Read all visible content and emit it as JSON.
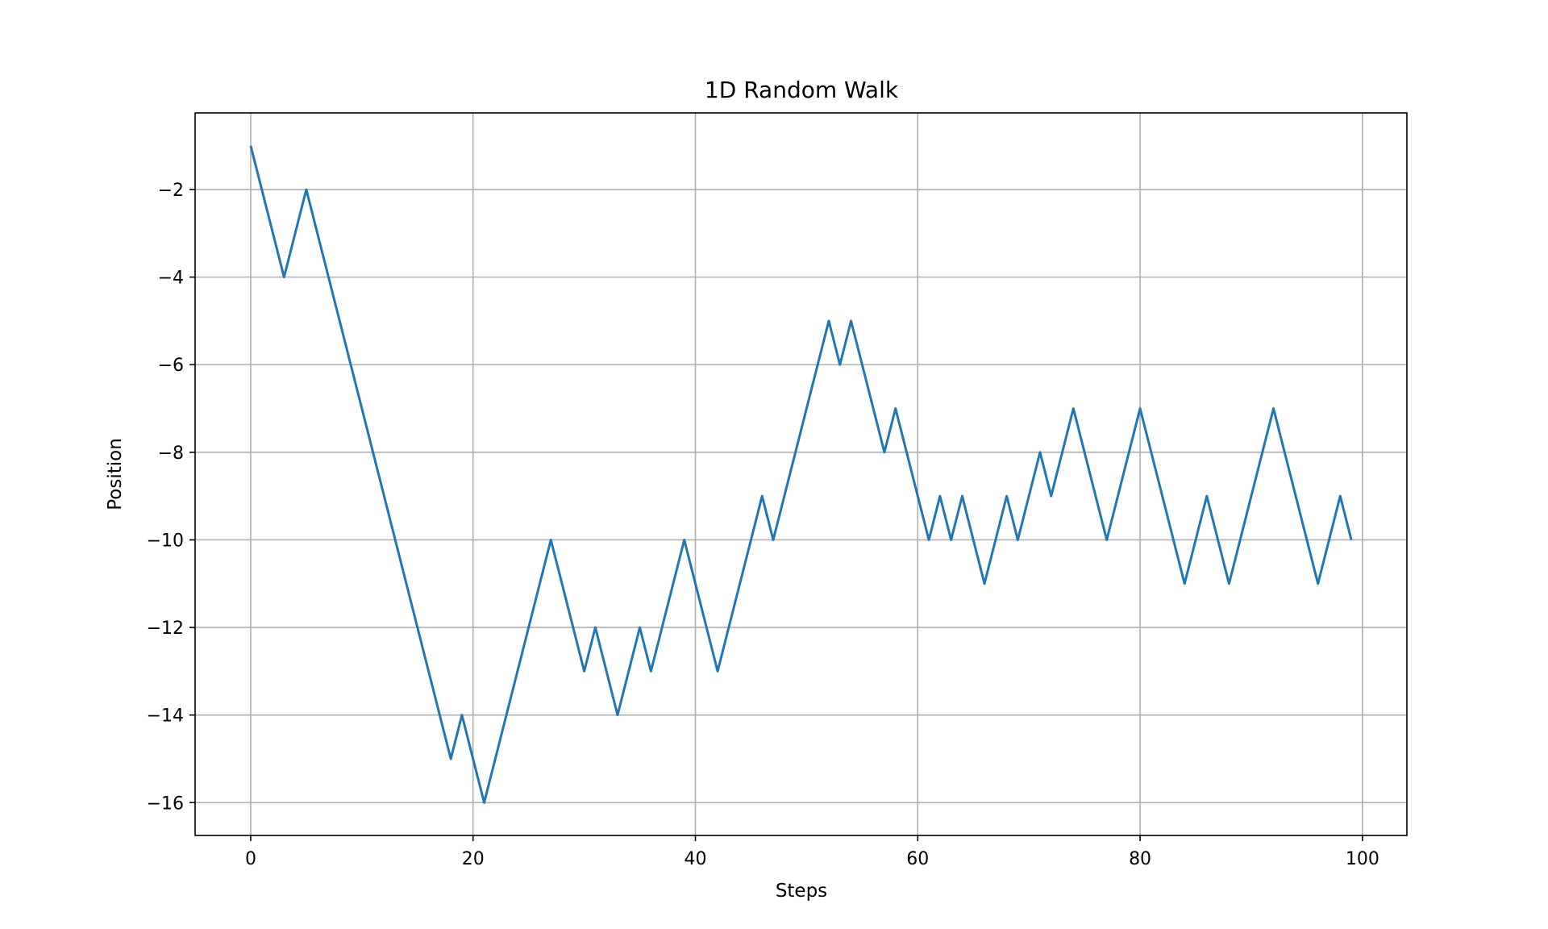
{
  "chart_data": {
    "type": "line",
    "title": "1D Random Walk",
    "xlabel": "Steps",
    "ylabel": "Position",
    "xlim": [
      -5,
      104
    ],
    "ylim": [
      -16.75,
      -0.25
    ],
    "xticks": [
      0,
      20,
      40,
      60,
      80,
      100
    ],
    "yticks": [
      -16,
      -14,
      -12,
      -10,
      -8,
      -6,
      -4,
      -2
    ],
    "grid": true,
    "series_color": "#1f77b4",
    "series": [
      {
        "x": [
          0,
          1,
          2,
          3,
          4,
          5,
          6,
          7,
          8,
          9,
          10,
          11,
          12,
          13,
          14,
          15,
          16,
          17,
          18,
          19,
          20,
          21,
          22,
          23,
          24,
          25,
          26,
          27,
          28,
          29,
          30,
          31,
          32,
          33,
          34,
          35,
          36,
          37,
          38,
          39,
          40,
          41,
          42,
          43,
          44,
          45,
          46,
          47,
          48,
          49,
          50,
          51,
          52,
          53,
          54,
          55,
          56,
          57,
          58,
          59,
          60,
          61,
          62,
          63,
          64,
          65,
          66,
          67,
          68,
          69,
          70,
          71,
          72,
          73,
          74,
          75,
          76,
          77,
          78,
          79,
          80,
          81,
          82,
          83,
          84,
          85,
          86,
          87,
          88,
          89,
          90,
          91,
          92,
          93,
          94,
          95,
          96,
          97,
          98,
          99
        ],
        "values": [
          -1,
          -2,
          -3,
          -4,
          -3,
          -2,
          -3,
          -4,
          -5,
          -6,
          -7,
          -8,
          -9,
          -10,
          -11,
          -12,
          -13,
          -14,
          -15,
          -14,
          -15,
          -16,
          -15,
          -14,
          -13,
          -12,
          -11,
          -10,
          -11,
          -12,
          -13,
          -12,
          -13,
          -14,
          -13,
          -12,
          -13,
          -12,
          -11,
          -10,
          -11,
          -12,
          -13,
          -12,
          -11,
          -10,
          -9,
          -10,
          -9,
          -8,
          -7,
          -6,
          -5,
          -6,
          -5,
          -6,
          -7,
          -8,
          -7,
          -8,
          -9,
          -10,
          -9,
          -10,
          -9,
          -10,
          -11,
          -10,
          -9,
          -10,
          -9,
          -8,
          -9,
          -8,
          -7,
          -8,
          -9,
          -10,
          -9,
          -8,
          -7,
          -8,
          -9,
          -10,
          -11,
          -10,
          -9,
          -10,
          -11,
          -10,
          -9,
          -8,
          -7,
          -8,
          -9,
          -10,
          -11,
          -10,
          -9,
          -10
        ]
      }
    ]
  }
}
